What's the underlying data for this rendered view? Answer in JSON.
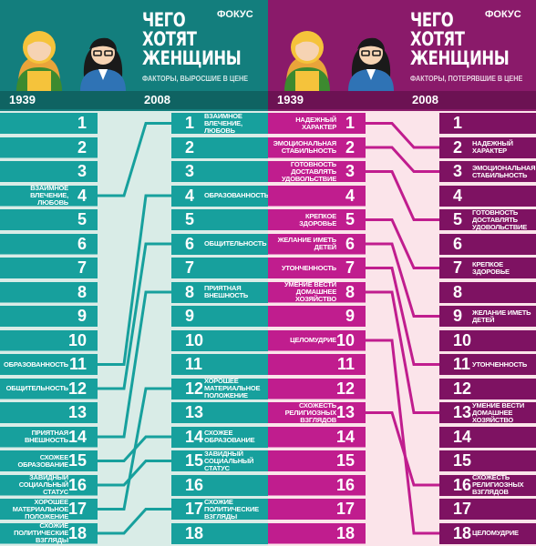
{
  "colors": {
    "left_head": "#137e7d",
    "left_head_dark": "#0f6362",
    "left_row": "#17a09d",
    "left_bg": "#d9ece7",
    "left_line": "#17a09d",
    "right_head": "#8a1a6a",
    "right_head_dark": "#6c1253",
    "right_row": "#c01d8e",
    "right_row_dark": "#7e1262",
    "right_bg": "#fbe4ea",
    "right_line": "#c01d8e"
  },
  "left": {
    "title": [
      "ЧЕГО",
      "ХОТЯТ",
      "ЖЕНЩИНЫ"
    ],
    "subtitle": "ФАКТОРЫ, ВЫРОСШИЕ В ЦЕНЕ",
    "logo": "ФОКУС",
    "year_a": "1939",
    "year_b": "2008",
    "numbers": [
      "1",
      "2",
      "3",
      "4",
      "5",
      "6",
      "7",
      "8",
      "9",
      "10",
      "11",
      "12",
      "13",
      "14",
      "15",
      "16",
      "17",
      "18"
    ],
    "labels_1939": [
      "",
      "",
      "",
      "ВЗАИМНОЕ ВЛЕЧЕНИЕ, ЛЮБОВЬ",
      "",
      "",
      "",
      "",
      "",
      "",
      "ОБРАЗОВАННОСТЬ",
      "ОБЩИТЕЛЬНОСТЬ",
      "",
      "ПРИЯТНАЯ ВНЕШНОСТЬ",
      "СХОЖЕЕ ОБРАЗОВАНИЕ",
      "ЗАВИДНЫЙ СОЦИАЛЬНЫЙ СТАТУС",
      "ХОРОШЕЕ МАТЕРИАЛЬНОЕ ПОЛОЖЕНИЕ",
      "СХОЖИЕ ПОЛИТИЧЕСКИЕ ВЗГЛЯДЫ"
    ],
    "labels_2008": [
      "ВЗАИМНОЕ ВЛЕЧЕНИЕ, ЛЮБОВЬ",
      "",
      "",
      "ОБРАЗОВАННОСТЬ",
      "",
      "ОБЩИТЕЛЬНОСТЬ",
      "",
      "ПРИЯТНАЯ ВНЕШНОСТЬ",
      "",
      "",
      "",
      "ХОРОШЕЕ МАТЕРИАЛЬНОЕ ПОЛОЖЕНИЕ",
      "",
      "СХОЖЕЕ ОБРАЗОВАНИЕ",
      "ЗАВИДНЫЙ СОЦИАЛЬНЫЙ СТАТУС",
      "",
      "СХОЖИЕ ПОЛИТИЧЕСКИЕ ВЗГЛЯДЫ",
      ""
    ],
    "links": [
      [
        4,
        1
      ],
      [
        11,
        4
      ],
      [
        12,
        6
      ],
      [
        14,
        8
      ],
      [
        17,
        12
      ],
      [
        15,
        14
      ],
      [
        16,
        15
      ],
      [
        18,
        17
      ]
    ]
  },
  "right": {
    "title": [
      "ЧЕГО",
      "ХОТЯТ",
      "ЖЕНЩИНЫ"
    ],
    "subtitle": "ФАКТОРЫ, ПОТЕРЯВШИЕ В ЦЕНЕ",
    "logo": "ФОКУС",
    "year_a": "1939",
    "year_b": "2008",
    "numbers": [
      "1",
      "2",
      "3",
      "4",
      "5",
      "6",
      "7",
      "8",
      "9",
      "10",
      "11",
      "12",
      "13",
      "14",
      "15",
      "16",
      "17",
      "18"
    ],
    "labels_1939": [
      "НАДЕЖНЫЙ ХАРАКТЕР",
      "ЭМОЦИОНАЛЬНАЯ СТАБИЛЬНОСТЬ",
      "ГОТОВНОСТЬ ДОСТАВЛЯТЬ УДОВОЛЬСТВИЕ",
      "",
      "КРЕПКОЕ ЗДОРОВЬЕ",
      "ЖЕЛАНИЕ ИМЕТЬ ДЕТЕЙ",
      "УТОНЧЕННОСТЬ",
      "УМЕНИЕ ВЕСТИ ДОМАШНЕЕ ХОЗЯЙСТВО",
      "",
      "ЦЕЛОМУДРИЕ",
      "",
      "",
      "СХОЖЕСТЬ РЕЛИГИОЗНЫХ ВЗГЛЯДОВ",
      "",
      "",
      "",
      "",
      ""
    ],
    "labels_2008": [
      "",
      "НАДЕЖНЫЙ ХАРАКТЕР",
      "ЭМОЦИОНАЛЬНАЯ СТАБИЛЬНОСТЬ",
      "",
      "ГОТОВНОСТЬ ДОСТАВЛЯТЬ УДОВОЛЬСТВИЕ",
      "",
      "КРЕПКОЕ ЗДОРОВЬЕ",
      "",
      "ЖЕЛАНИЕ ИМЕТЬ ДЕТЕЙ",
      "",
      "УТОНЧЕННОСТЬ",
      "",
      "УМЕНИЕ ВЕСТИ ДОМАШНЕЕ ХОЗЯЙСТВО",
      "",
      "",
      "СХОЖЕСТЬ РЕЛИГИОЗНЫХ ВЗГЛЯДОВ",
      "",
      "ЦЕЛОМУДРИЕ"
    ],
    "links": [
      [
        1,
        2
      ],
      [
        2,
        3
      ],
      [
        3,
        5
      ],
      [
        5,
        7
      ],
      [
        6,
        9
      ],
      [
        7,
        11
      ],
      [
        8,
        13
      ],
      [
        13,
        16
      ],
      [
        10,
        18
      ]
    ]
  }
}
